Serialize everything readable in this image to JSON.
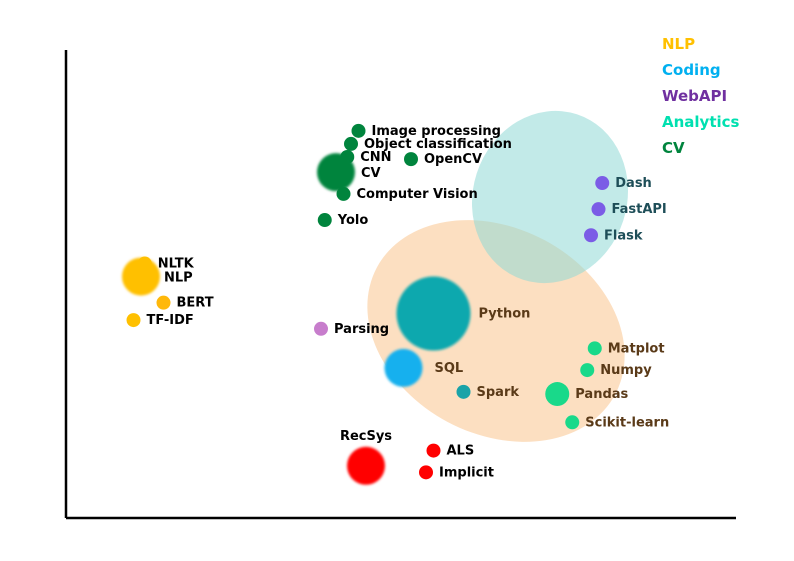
{
  "chart_data": {
    "type": "scatter",
    "title": "",
    "xlabel": "",
    "ylabel": "",
    "grid": false,
    "legend_position": "top-right",
    "legend": [
      {
        "name": "NLP",
        "color": "#FFC000"
      },
      {
        "name": "Coding",
        "color": "#00B0F0"
      },
      {
        "name": "WebAPI",
        "color": "#7030A0"
      },
      {
        "name": "Analytics",
        "color": "#00E0B0"
      },
      {
        "name": "CV",
        "color": "#00843D"
      }
    ],
    "series": [
      {
        "name": "CV",
        "color": "#00843D",
        "points": [
          {
            "label": "Image processing",
            "x": 3.9,
            "y": 8.9,
            "size": 1
          },
          {
            "label": "Object classification",
            "x": 3.8,
            "y": 8.6,
            "size": 1
          },
          {
            "label": "CNN",
            "x": 3.75,
            "y": 8.3,
            "size": 1
          },
          {
            "label": "OpenCV",
            "x": 4.6,
            "y": 8.25,
            "size": 1
          },
          {
            "label": "CV",
            "x": 3.6,
            "y": 7.95,
            "size": 3
          },
          {
            "label": "Computer Vision",
            "x": 3.7,
            "y": 7.45,
            "size": 1
          },
          {
            "label": "Yolo",
            "x": 3.45,
            "y": 6.85,
            "size": 1
          }
        ]
      },
      {
        "name": "WebAPI",
        "color": "#7030A0",
        "points": [
          {
            "label": "Dash",
            "x": 7.15,
            "y": 7.7,
            "size": 1
          },
          {
            "label": "FastAPI",
            "x": 7.1,
            "y": 7.1,
            "size": 1
          },
          {
            "label": "Flask",
            "x": 7.0,
            "y": 6.5,
            "size": 1
          },
          {
            "label": "Parsing",
            "x": 3.4,
            "y": 4.35,
            "size": 1
          }
        ]
      },
      {
        "name": "Coding",
        "color": "#00B0F0",
        "points": [
          {
            "label": "Python",
            "x": 4.9,
            "y": 4.7,
            "size": 5
          },
          {
            "label": "SQL",
            "x": 4.5,
            "y": 3.45,
            "size": 3
          },
          {
            "label": "Spark",
            "x": 5.3,
            "y": 2.9,
            "size": 1
          }
        ]
      },
      {
        "name": "Analytics",
        "color": "#00E0B0",
        "points": [
          {
            "label": "Matplot",
            "x": 7.05,
            "y": 3.9,
            "size": 1
          },
          {
            "label": "Numpy",
            "x": 6.95,
            "y": 3.4,
            "size": 1
          },
          {
            "label": "Pandas",
            "x": 6.55,
            "y": 2.85,
            "size": 2
          },
          {
            "label": "Scikit-learn",
            "x": 6.75,
            "y": 2.2,
            "size": 1
          }
        ]
      },
      {
        "name": "NLP",
        "color": "#FFC000",
        "points": [
          {
            "label": "NLTK",
            "x": 1.05,
            "y": 5.85,
            "size": 1
          },
          {
            "label": "NLP",
            "x": 1.0,
            "y": 5.55,
            "size": 3
          },
          {
            "label": "BERT",
            "x": 1.3,
            "y": 4.95,
            "size": 1
          },
          {
            "label": "TF-IDF",
            "x": 0.9,
            "y": 4.55,
            "size": 1
          }
        ]
      },
      {
        "name": "RecSys",
        "color": "#FF0000",
        "points": [
          {
            "label": "RecSys",
            "x": 4.0,
            "y": 1.2,
            "size": 3
          },
          {
            "label": "ALS",
            "x": 4.9,
            "y": 1.55,
            "size": 1
          },
          {
            "label": "Implicit",
            "x": 4.8,
            "y": 1.05,
            "size": 1
          }
        ]
      }
    ],
    "regions": [
      {
        "name": "Coding region",
        "color": "#F9C58E"
      },
      {
        "name": "WebAPI region",
        "color": "#8FD8D5"
      }
    ]
  }
}
